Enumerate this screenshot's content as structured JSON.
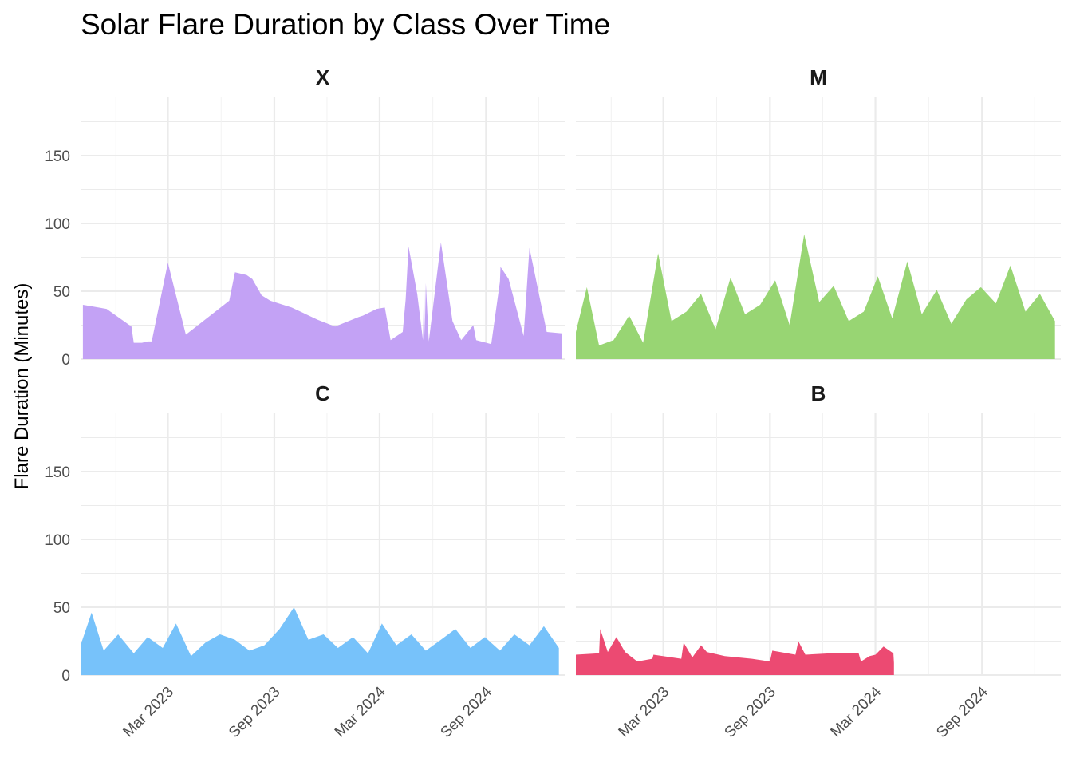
{
  "chart_data": {
    "type": "area",
    "title": "Solar Flare Duration by Class Over Time",
    "xlabel": "",
    "ylabel": "Flare Duration (Minutes)",
    "ylim": [
      0,
      190
    ],
    "xlim": [
      "2022-10-01",
      "2025-01-15"
    ],
    "y_ticks": [
      0,
      50,
      100,
      150
    ],
    "x_ticks": [
      {
        "date": "2023-03-01",
        "label": "Mar 2023"
      },
      {
        "date": "2023-09-01",
        "label": "Sep 2023"
      },
      {
        "date": "2024-03-01",
        "label": "Mar 2024"
      },
      {
        "date": "2024-09-01",
        "label": "Sep 2024"
      }
    ],
    "grid": true,
    "legend": "none",
    "panels": [
      {
        "name": "X",
        "color": "#C3A2F5",
        "x": [
          "2022-10-05",
          "2022-11-15",
          "2022-12-28",
          "2023-01-01",
          "2023-01-15",
          "2023-01-25",
          "2023-02-01",
          "2023-03-01",
          "2023-04-01",
          "2023-06-15",
          "2023-06-25",
          "2023-07-15",
          "2023-07-25",
          "2023-08-10",
          "2023-08-25",
          "2023-10-01",
          "2023-11-15",
          "2023-12-15",
          "2024-01-25",
          "2024-02-01",
          "2024-02-25",
          "2024-03-10",
          "2024-03-20",
          "2024-04-10",
          "2024-04-15",
          "2024-04-20",
          "2024-05-05",
          "2024-05-15",
          "2024-05-17",
          "2024-05-18",
          "2024-05-20",
          "2024-05-25",
          "2024-06-15",
          "2024-07-05",
          "2024-07-20",
          "2024-08-10",
          "2024-08-15",
          "2024-09-10",
          "2024-09-25",
          "2024-09-26",
          "2024-10-10",
          "2024-10-25",
          "2024-11-05",
          "2024-11-15",
          "2024-12-15",
          "2025-01-10"
        ],
        "y": [
          40,
          37,
          24,
          12,
          12,
          13,
          13,
          71,
          18,
          43,
          64,
          62,
          59,
          47,
          43,
          38,
          29,
          24,
          31,
          32,
          37,
          38,
          14,
          20,
          44,
          83,
          48,
          14,
          66,
          17,
          56,
          13,
          86,
          28,
          14,
          25,
          14,
          11,
          57,
          68,
          59,
          35,
          17,
          82,
          20,
          19
        ]
      },
      {
        "name": "M",
        "color": "#98D573",
        "x": [
          "2022-10-01",
          "2022-10-20",
          "2022-11-10",
          "2022-12-05",
          "2023-01-01",
          "2023-01-25",
          "2023-02-20",
          "2023-03-15",
          "2023-04-10",
          "2023-05-05",
          "2023-05-30",
          "2023-06-25",
          "2023-07-20",
          "2023-08-15",
          "2023-09-10",
          "2023-10-05",
          "2023-10-30",
          "2023-11-25",
          "2023-12-20",
          "2024-01-15",
          "2024-02-10",
          "2024-03-05",
          "2024-03-30",
          "2024-04-25",
          "2024-05-20",
          "2024-06-15",
          "2024-07-10",
          "2024-08-05",
          "2024-08-30",
          "2024-09-25",
          "2024-10-20",
          "2024-11-15",
          "2024-12-10",
          "2025-01-05"
        ],
        "y": [
          20,
          53,
          10,
          14,
          32,
          12,
          78,
          28,
          35,
          48,
          22,
          60,
          33,
          40,
          58,
          25,
          92,
          42,
          54,
          28,
          35,
          61,
          30,
          72,
          33,
          51,
          26,
          44,
          53,
          41,
          69,
          35,
          48,
          28
        ]
      },
      {
        "name": "C",
        "color": "#77C2FA",
        "x": [
          "2022-10-01",
          "2022-10-20",
          "2022-11-10",
          "2022-12-05",
          "2023-01-01",
          "2023-01-25",
          "2023-02-20",
          "2023-03-15",
          "2023-04-10",
          "2023-05-05",
          "2023-05-30",
          "2023-06-25",
          "2023-07-20",
          "2023-08-15",
          "2023-09-10",
          "2023-10-05",
          "2023-10-30",
          "2023-11-25",
          "2023-12-20",
          "2024-01-15",
          "2024-02-10",
          "2024-03-05",
          "2024-03-30",
          "2024-04-25",
          "2024-05-20",
          "2024-06-15",
          "2024-07-10",
          "2024-08-05",
          "2024-08-30",
          "2024-09-25",
          "2024-10-20",
          "2024-11-15",
          "2024-12-10",
          "2025-01-05"
        ],
        "y": [
          22,
          46,
          18,
          30,
          16,
          28,
          20,
          38,
          14,
          24,
          30,
          26,
          18,
          22,
          34,
          50,
          26,
          30,
          20,
          28,
          16,
          38,
          22,
          30,
          18,
          26,
          34,
          20,
          28,
          18,
          30,
          22,
          36,
          20
        ]
      },
      {
        "name": "B",
        "color": "#EC4A72",
        "x": [
          "2022-10-01",
          "2022-11-10",
          "2022-11-12",
          "2022-11-25",
          "2022-12-10",
          "2022-12-25",
          "2023-01-15",
          "2023-02-10",
          "2023-02-12",
          "2023-04-01",
          "2023-04-05",
          "2023-04-20",
          "2023-05-05",
          "2023-05-15",
          "2023-06-15",
          "2023-08-01",
          "2023-09-01",
          "2023-09-05",
          "2023-10-15",
          "2023-10-20",
          "2023-11-01",
          "2023-12-15",
          "2024-02-01",
          "2024-02-05",
          "2024-02-20",
          "2024-03-01",
          "2024-03-15",
          "2024-04-01",
          "2024-04-02"
        ],
        "y": [
          15,
          16,
          34,
          17,
          28,
          17,
          10,
          12,
          15,
          12,
          24,
          13,
          22,
          17,
          14,
          12,
          10,
          18,
          15,
          25,
          15,
          16,
          16,
          10,
          14,
          15,
          21,
          16,
          9
        ]
      }
    ]
  }
}
